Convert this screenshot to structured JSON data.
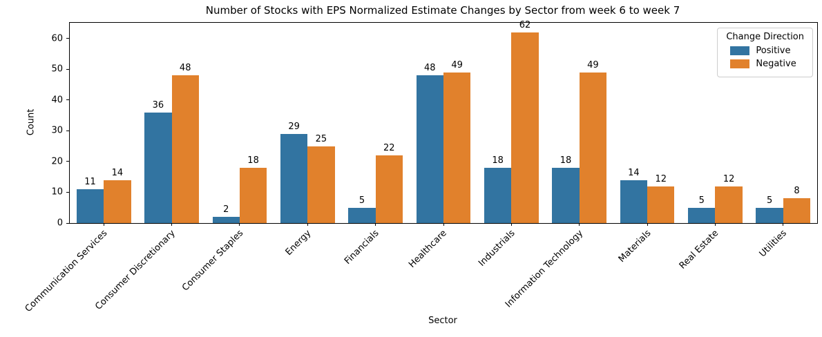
{
  "chart_data": {
    "type": "bar",
    "title": "Number of Stocks with EPS Normalized Estimate Changes by Sector from week 6 to week 7",
    "xlabel": "Sector",
    "ylabel": "Count",
    "legend_title": "Change Direction",
    "legend_position": "upper right",
    "grid": false,
    "bar_labels": true,
    "categories": [
      "Communication Services",
      "Consumer Discretionary",
      "Consumer Staples",
      "Energy",
      "Financials",
      "Healthcare",
      "Industrials",
      "Information Technology",
      "Materials",
      "Real Estate",
      "Utilities"
    ],
    "series": [
      {
        "name": "Positive",
        "color": "#3274a1",
        "values": [
          11,
          36,
          2,
          29,
          5,
          48,
          18,
          18,
          14,
          5,
          5
        ]
      },
      {
        "name": "Negative",
        "color": "#e1812c",
        "values": [
          14,
          48,
          18,
          25,
          22,
          49,
          62,
          49,
          12,
          12,
          8
        ]
      }
    ],
    "ylim": [
      0,
      65.1
    ],
    "yticks": [
      0,
      10,
      20,
      30,
      40,
      50,
      60
    ]
  }
}
